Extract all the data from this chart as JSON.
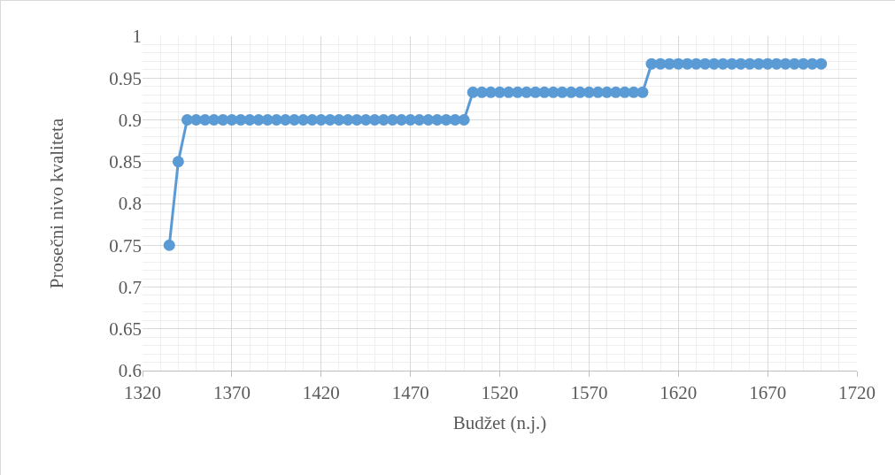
{
  "chart_data": {
    "type": "line",
    "xlabel": "Budžet (n.j.)",
    "ylabel": "Prosečni nivo kvaliteta",
    "x": [
      1335,
      1340,
      1345,
      1350,
      1355,
      1360,
      1365,
      1370,
      1375,
      1380,
      1385,
      1390,
      1395,
      1400,
      1405,
      1410,
      1415,
      1420,
      1425,
      1430,
      1435,
      1440,
      1445,
      1450,
      1455,
      1460,
      1465,
      1470,
      1475,
      1480,
      1485,
      1490,
      1495,
      1500,
      1505,
      1510,
      1515,
      1520,
      1525,
      1530,
      1535,
      1540,
      1545,
      1550,
      1555,
      1560,
      1565,
      1570,
      1575,
      1580,
      1585,
      1590,
      1595,
      1600,
      1605,
      1610,
      1615,
      1620,
      1625,
      1630,
      1635,
      1640,
      1645,
      1650,
      1655,
      1660,
      1665,
      1670,
      1675,
      1680,
      1685,
      1690,
      1695,
      1700
    ],
    "series": [
      {
        "color": "#5b9bd5",
        "values": [
          0.75,
          0.85,
          0.9,
          0.9,
          0.9,
          0.9,
          0.9,
          0.9,
          0.9,
          0.9,
          0.9,
          0.9,
          0.9,
          0.9,
          0.9,
          0.9,
          0.9,
          0.9,
          0.9,
          0.9,
          0.9,
          0.9,
          0.9,
          0.9,
          0.9,
          0.9,
          0.9,
          0.9,
          0.9,
          0.9,
          0.9,
          0.9,
          0.9,
          0.9,
          0.933,
          0.933,
          0.933,
          0.933,
          0.933,
          0.933,
          0.933,
          0.933,
          0.933,
          0.933,
          0.933,
          0.933,
          0.933,
          0.933,
          0.933,
          0.933,
          0.933,
          0.933,
          0.933,
          0.933,
          0.967,
          0.967,
          0.967,
          0.967,
          0.967,
          0.967,
          0.967,
          0.967,
          0.967,
          0.967,
          0.967,
          0.967,
          0.967,
          0.967,
          0.967,
          0.967,
          0.967,
          0.967,
          0.967,
          0.967
        ]
      }
    ],
    "xlim": [
      1320,
      1720
    ],
    "xticks": [
      1320,
      1370,
      1420,
      1470,
      1520,
      1570,
      1620,
      1670,
      1720
    ],
    "ylim": [
      0.6,
      1
    ],
    "yticks": [
      0.6,
      0.65,
      0.7,
      0.75,
      0.8,
      0.85,
      0.9,
      0.95,
      1
    ],
    "grid": true,
    "marker": "circle",
    "line_style": "solid"
  }
}
